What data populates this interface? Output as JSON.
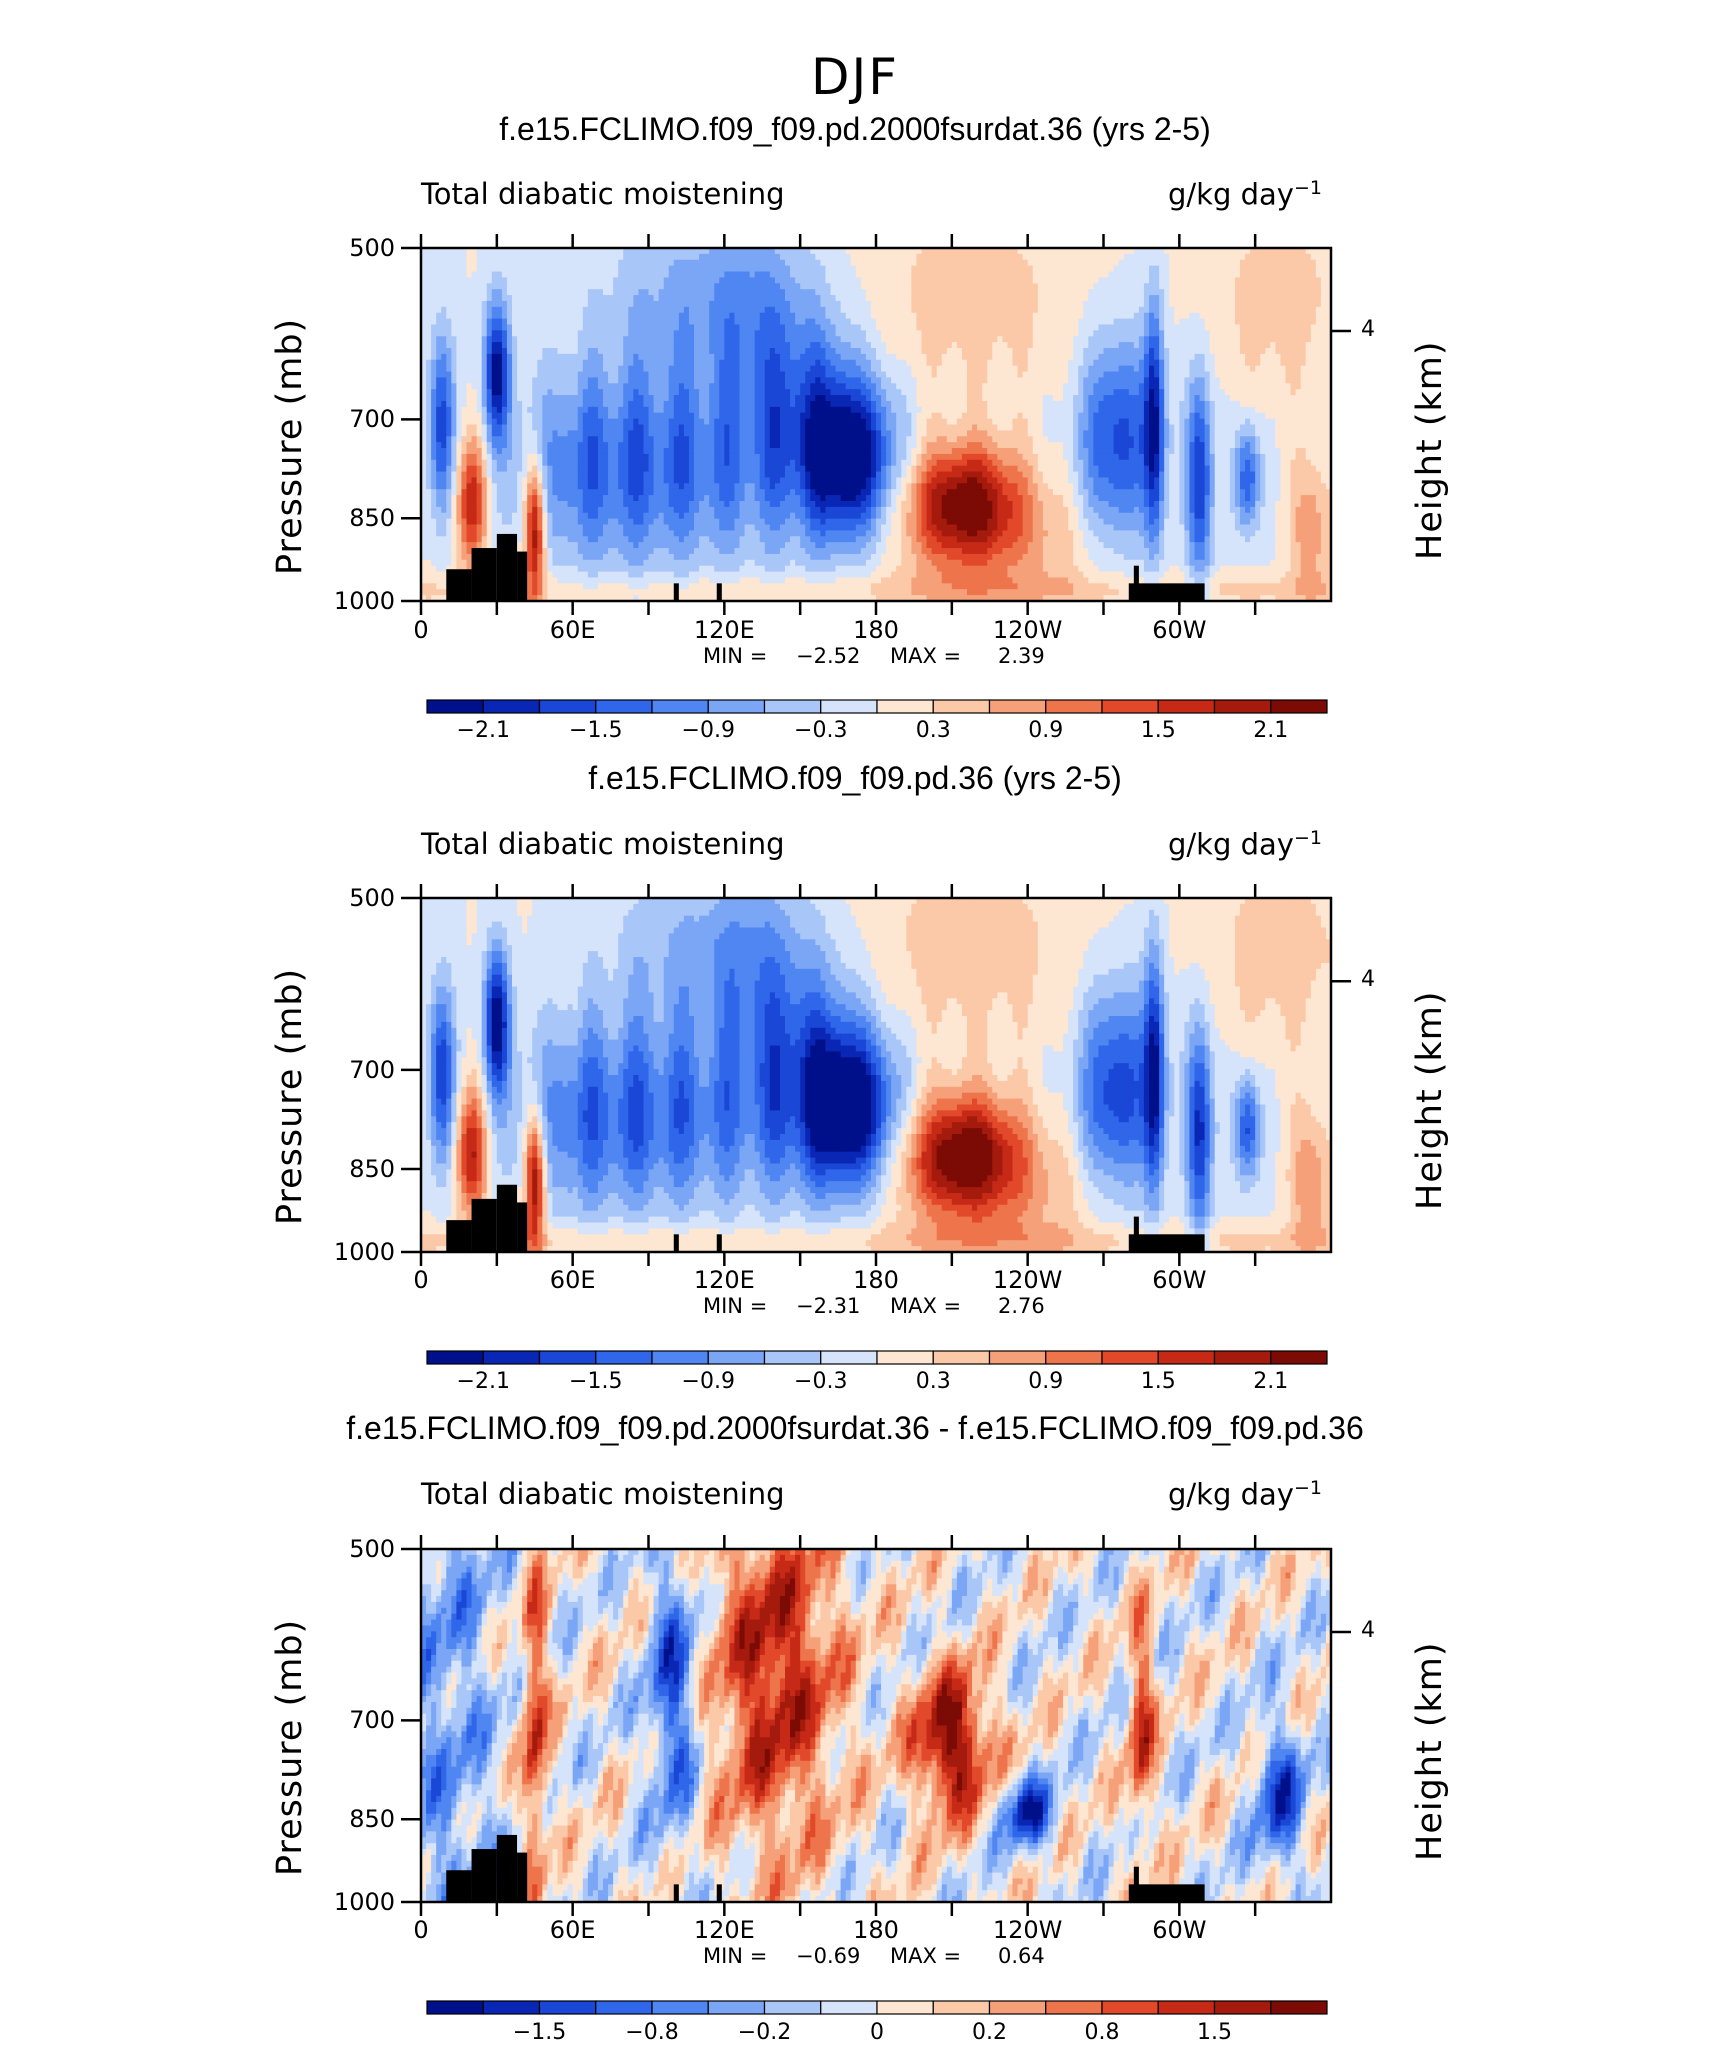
{
  "main_title": "DJF",
  "chart_data": [
    {
      "type": "heatmap",
      "title": "f.e15.FCLIMO.f09_f09.pd.2000fsurdat.36 (yrs 2-5)",
      "field_label": "Total diabatic moistening",
      "units_base": "g/kg day",
      "units_exp": "−1",
      "ylabel": "Pressure (mb)",
      "ylabel_right": "Height (km)",
      "x_ticks": [
        "0",
        "60E",
        "120E",
        "180",
        "120W",
        "60W"
      ],
      "y_ticks": [
        "500",
        "700",
        "850",
        "1000"
      ],
      "right_ticks": [
        "4"
      ],
      "stats_min_label": "MIN =",
      "stats_min": "−2.52",
      "stats_max_label": "MAX =",
      "stats_max": "2.39",
      "colorbar_labels": [
        "−2.1",
        "−1.5",
        "−0.9",
        "−0.3",
        "0.3",
        "0.9",
        "1.5",
        "2.1"
      ],
      "field_range": [
        -2.52,
        2.39
      ]
    },
    {
      "type": "heatmap",
      "title": "f.e15.FCLIMO.f09_f09.pd.36 (yrs 2-5)",
      "field_label": "Total diabatic moistening",
      "units_base": "g/kg day",
      "units_exp": "−1",
      "ylabel": "Pressure (mb)",
      "ylabel_right": "Height (km)",
      "x_ticks": [
        "0",
        "60E",
        "120E",
        "180",
        "120W",
        "60W"
      ],
      "y_ticks": [
        "500",
        "700",
        "850",
        "1000"
      ],
      "right_ticks": [
        "4"
      ],
      "stats_min_label": "MIN =",
      "stats_min": "−2.31",
      "stats_max_label": "MAX =",
      "stats_max": "2.76",
      "colorbar_labels": [
        "−2.1",
        "−1.5",
        "−0.9",
        "−0.3",
        "0.3",
        "0.9",
        "1.5",
        "2.1"
      ],
      "field_range": [
        -2.31,
        2.76
      ]
    },
    {
      "type": "heatmap",
      "title": "f.e15.FCLIMO.f09_f09.pd.2000fsurdat.36 - f.e15.FCLIMO.f09_f09.pd.36",
      "field_label": "Total diabatic moistening",
      "units_base": "g/kg day",
      "units_exp": "−1",
      "ylabel": "Pressure (mb)",
      "ylabel_right": "Height (km)",
      "x_ticks": [
        "0",
        "60E",
        "120E",
        "180",
        "120W",
        "60W"
      ],
      "y_ticks": [
        "500",
        "700",
        "850",
        "1000"
      ],
      "right_ticks": [
        "4"
      ],
      "stats_min_label": "MIN =",
      "stats_min": "−0.69",
      "stats_max_label": "MAX =",
      "stats_max": "0.64",
      "colorbar_labels": [
        "−1.5",
        "−0.8",
        "−0.2",
        "0",
        "0.2",
        "0.8",
        "1.5"
      ],
      "field_range": [
        -0.69,
        0.64
      ]
    }
  ],
  "colors": {
    "palette": [
      "#00108a",
      "#0a26b4",
      "#1a47d6",
      "#2f66ea",
      "#4f86f2",
      "#7ba6f6",
      "#a9c6f8",
      "#d5e4fb",
      "#fde6d2",
      "#fbc8a8",
      "#f6a07a",
      "#ee744c",
      "#e2482a",
      "#c62a17",
      "#a41a0c",
      "#7c0a05"
    ],
    "terrain": "#000000"
  }
}
